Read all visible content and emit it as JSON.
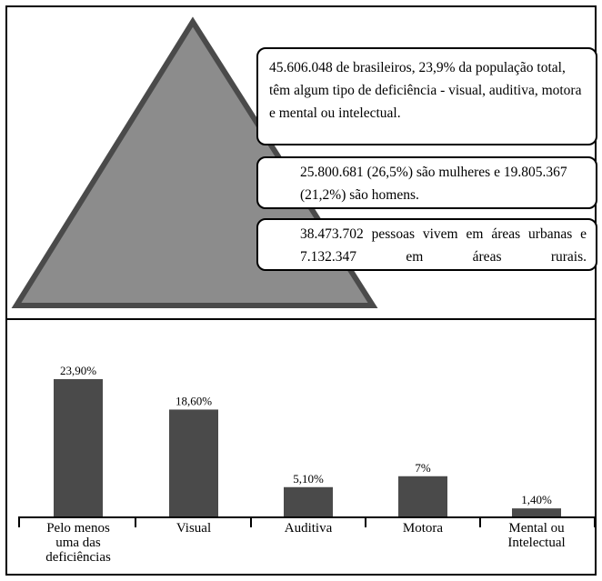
{
  "info": {
    "box1": "45.606.048 de brasileiros, 23,9% da população total, têm algum tipo de deficiência - visual, auditiva, motora e mental ou intelectual.",
    "box2": "25.800.681 (26,5%) são mulheres e 19.805.367 (21,2%) são homens.",
    "box3": "38.473.702 pessoas vivem em áreas urbanas e 7.132.347 em áreas rurais."
  },
  "colors": {
    "bar": "#4a4a4a",
    "triangle_fill": "#8c8c8c",
    "triangle_stroke": "#4a4a4a"
  },
  "chart_data": {
    "type": "bar",
    "categories": [
      "Pelo menos uma das deficiências",
      "Visual",
      "Auditiva",
      "Motora",
      "Mental ou Intelectual"
    ],
    "category_lines": [
      [
        "Pelo menos",
        "uma das",
        "deficiências"
      ],
      [
        "Visual"
      ],
      [
        "Auditiva"
      ],
      [
        "Motora"
      ],
      [
        "Mental ou",
        "Intelectual"
      ]
    ],
    "values": [
      23.9,
      18.6,
      5.1,
      7,
      1.4
    ],
    "value_labels": [
      "23,90%",
      "18,60%",
      "5,10%",
      "7%",
      "1,40%"
    ],
    "ylim": [
      0,
      25
    ],
    "grid": false,
    "title": "",
    "xlabel": "",
    "ylabel": ""
  }
}
